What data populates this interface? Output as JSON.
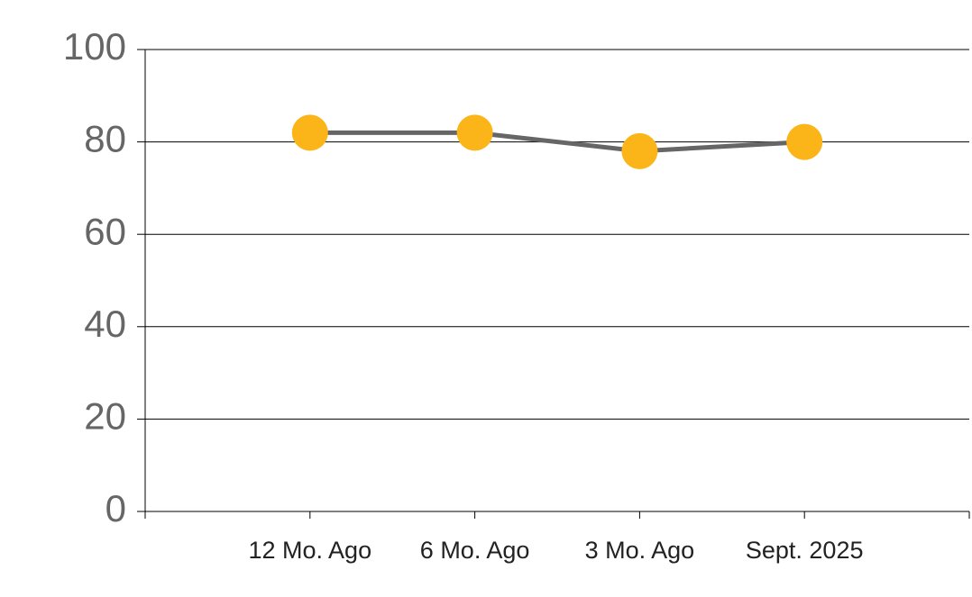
{
  "chart_data": {
    "type": "line",
    "categories": [
      null,
      "12 Mo. Ago",
      "6 Mo. Ago",
      "3 Mo. Ago",
      "Sept. 2025",
      null
    ],
    "series": [
      {
        "name": null,
        "color": "#666666",
        "marker_color": "#fbb519",
        "values": [
          null,
          82,
          82,
          78,
          80,
          null
        ]
      }
    ],
    "ylim": [
      0,
      100
    ],
    "yticks": [
      0,
      20,
      40,
      60,
      80,
      100
    ],
    "grid": true
  }
}
